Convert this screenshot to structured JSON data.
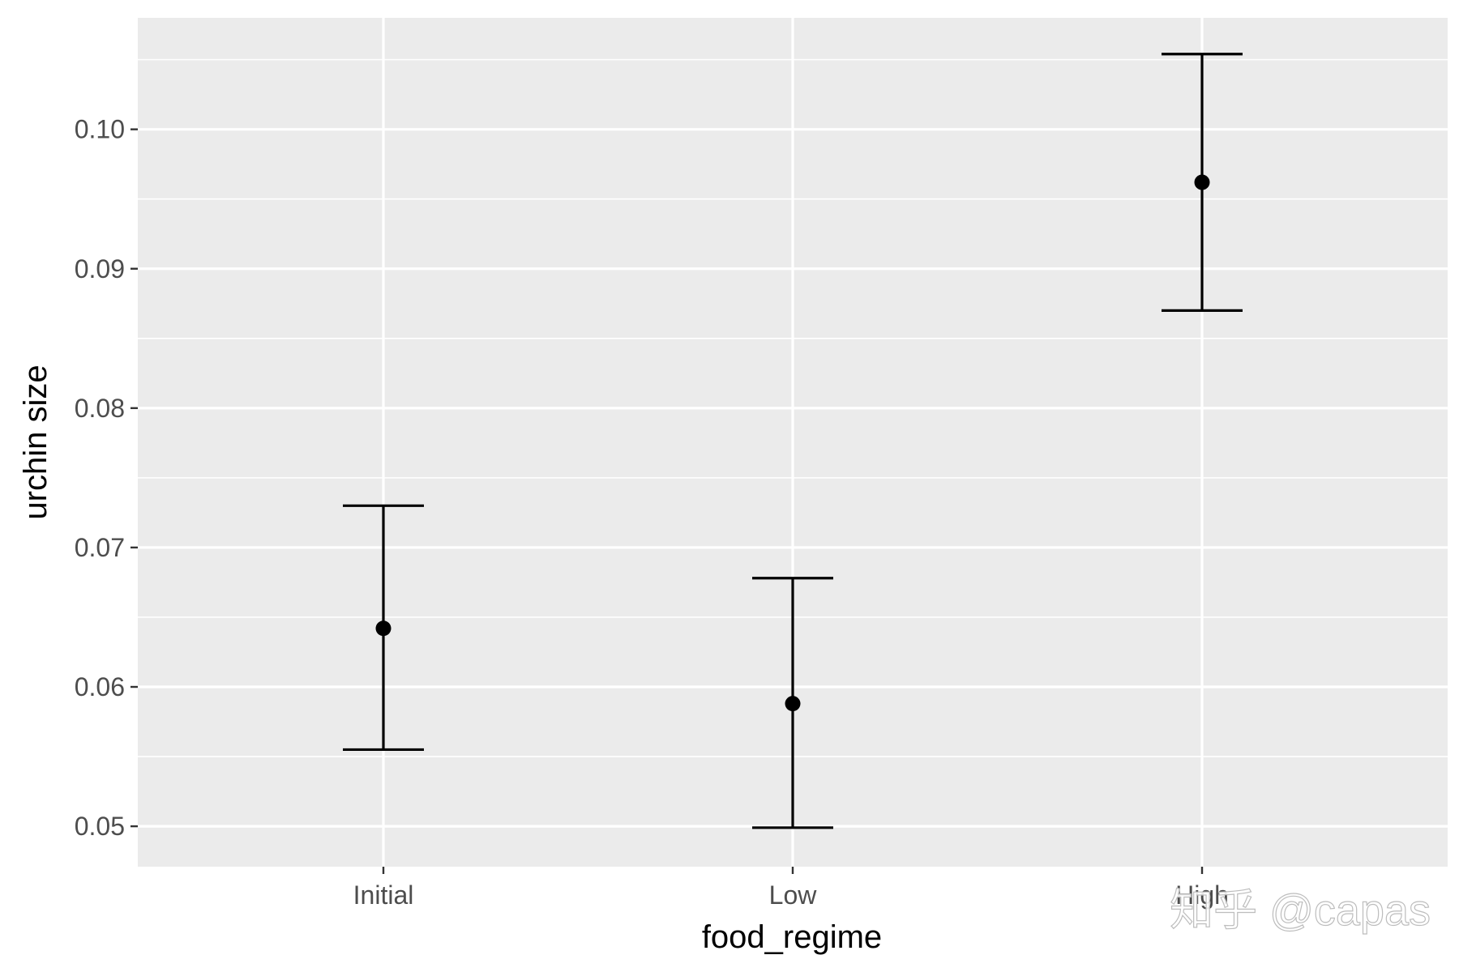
{
  "chart_data": {
    "type": "errorbar",
    "title": "",
    "xlabel": "food_regime",
    "ylabel": "urchin size",
    "categories": [
      "Initial",
      "Low",
      "High"
    ],
    "mean": [
      0.0642,
      0.0588,
      0.0962
    ],
    "lower": [
      0.0555,
      0.0499,
      0.087
    ],
    "upper": [
      0.073,
      0.0678,
      0.1054
    ],
    "ylim": [
      0.0471,
      0.108
    ],
    "yticks": [
      0.05,
      0.06,
      0.07,
      0.08,
      0.09,
      0.1
    ],
    "ytick_labels": [
      "0.05",
      "0.06",
      "0.07",
      "0.08",
      "0.09",
      "0.10"
    ],
    "grid": true,
    "legend": "none",
    "colors": {
      "panel_background": "#ebebeb",
      "grid_line": "#ffffff",
      "mark": "#000000",
      "tick_text": "#4d4d4d",
      "axis_title": "#000000",
      "watermark": "#ffffff"
    }
  },
  "watermark": {
    "text": "知乎 @capas"
  }
}
